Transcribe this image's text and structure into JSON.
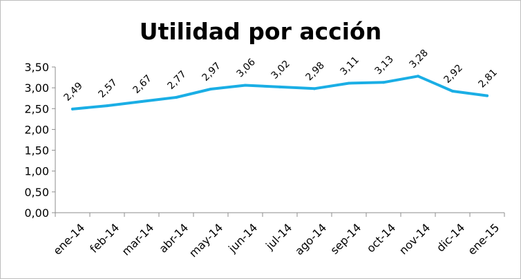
{
  "chart_data": {
    "type": "line",
    "title": "Utilidad por acción",
    "xlabel": "",
    "ylabel": "",
    "categories": [
      "ene-14",
      "feb-14",
      "mar-14",
      "abr-14",
      "may-14",
      "jun-14",
      "jul-14",
      "ago-14",
      "sep-14",
      "oct-14",
      "nov-14",
      "dic-14",
      "ene-15"
    ],
    "series": [
      {
        "values": [
          2.49,
          2.57,
          2.67,
          2.77,
          2.97,
          3.06,
          3.02,
          2.98,
          3.11,
          3.13,
          3.28,
          2.92,
          2.81
        ],
        "labels": [
          "2,49",
          "2,57",
          "2,67",
          "2,77",
          "2,97",
          "3,06",
          "3,02",
          "2,98",
          "3,11",
          "3,13",
          "3,28",
          "2,92",
          "2,81"
        ],
        "color": "#1aaee5"
      }
    ],
    "ylim": [
      0,
      3.5
    ],
    "yticks": [
      0,
      0.5,
      1,
      1.5,
      2,
      2.5,
      3,
      3.5
    ],
    "ytick_labels": [
      "0,00",
      "0,50",
      "1,00",
      "1,50",
      "2,00",
      "2,50",
      "3,00",
      "3,50"
    ],
    "grid": false,
    "legend": "none",
    "axis_color": "#8c8c8c"
  }
}
